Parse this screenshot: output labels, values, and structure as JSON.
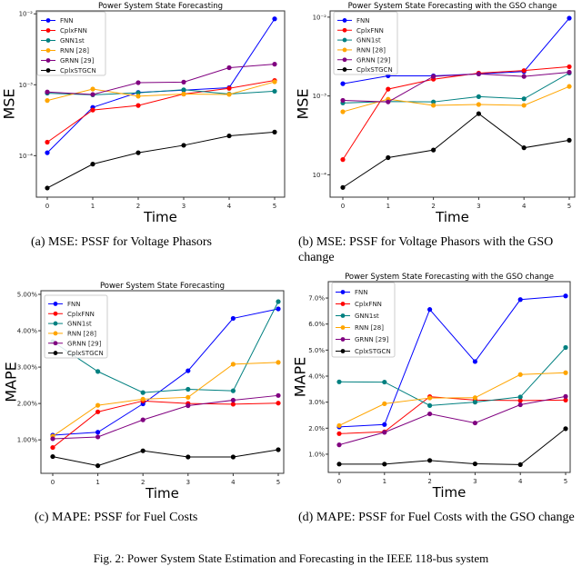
{
  "colors": {
    "FNN": "#0000ff",
    "CplxFNN": "#ff0000",
    "GNN1st": "#008080",
    "RNN [28]": "#ffa500",
    "GRNN [29]": "#800080",
    "CplxSTGCN": "#000000"
  },
  "captions": {
    "a": "(a)  MSE: PSSF for Voltage Phasors",
    "b": "(b)  MSE: PSSF for Voltage Phasors with the GSO change",
    "c": "(c)  MAPE: PSSF for Fuel Costs",
    "d": "(d)  MAPE: PSSF for Fuel Costs with the GSO change",
    "figure": "Fig. 2: Power System State Estimation and Forecasting in the IEEE 118-bus system"
  },
  "chart_data": [
    {
      "type": "line",
      "title": "Power System State Forecasting",
      "xlabel": "Time",
      "ylabel": "MSE",
      "yscale": "log",
      "ylim": [
        2.6e-05,
        0.011
      ],
      "grid": false,
      "legend": "top-left",
      "x": [
        0,
        1,
        2,
        3,
        4,
        5
      ],
      "yticks": [
        0.0001,
        0.001,
        0.01
      ],
      "ytick_labels": [
        "10⁻⁴",
        "10⁻³",
        "10⁻²"
      ],
      "series": [
        {
          "name": "FNN",
          "values": [
            0.00011,
            0.00048,
            0.00078,
            0.00084,
            0.00091,
            0.0085
          ]
        },
        {
          "name": "CplxFNN",
          "values": [
            0.000155,
            0.00044,
            0.00051,
            0.00074,
            0.00089,
            0.00115
          ]
        },
        {
          "name": "GNN1st",
          "values": [
            0.00076,
            0.00072,
            0.00077,
            0.00085,
            0.00074,
            0.00081
          ]
        },
        {
          "name": "RNN [28]",
          "values": [
            0.0006,
            0.00087,
            0.00069,
            0.00074,
            0.00073,
            0.0011
          ]
        },
        {
          "name": "GRNN [29]",
          "values": [
            0.00079,
            0.00073,
            0.00107,
            0.00109,
            0.00174,
            0.00195
          ]
        },
        {
          "name": "CplxSTGCN",
          "values": [
            3.5e-05,
            7.6e-05,
            0.00011,
            0.00014,
            0.00019,
            0.000215
          ]
        }
      ]
    },
    {
      "type": "line",
      "title": "Power System State Forecasting with the GSO change",
      "xlabel": "Time",
      "ylabel": "MSE",
      "yscale": "log",
      "ylim": [
        5.2e-05,
        0.012
      ],
      "grid": false,
      "legend": "top-left",
      "x": [
        0,
        1,
        2,
        3,
        4,
        5
      ],
      "yticks": [
        0.0001,
        0.001,
        0.01
      ],
      "ytick_labels": [
        "10⁻⁴",
        "10⁻³",
        "10⁻²"
      ],
      "series": [
        {
          "name": "FNN",
          "values": [
            0.00143,
            0.0018,
            0.0018,
            0.0019,
            0.00204,
            0.0097
          ]
        },
        {
          "name": "CplxFNN",
          "values": [
            0.000156,
            0.00122,
            0.00163,
            0.00195,
            0.0021,
            0.00235
          ]
        },
        {
          "name": "GNN1st",
          "values": [
            0.000815,
            0.00085,
            0.00084,
            0.00098,
            0.00092,
            0.00195
          ]
        },
        {
          "name": "RNN [28]",
          "values": [
            0.00063,
            0.00091,
            0.00076,
            0.00078,
            0.00076,
            0.00132
          ]
        },
        {
          "name": "GRNN [29]",
          "values": [
            0.00088,
            0.00084,
            0.00177,
            0.0019,
            0.00177,
            0.002
          ]
        },
        {
          "name": "CplxSTGCN",
          "values": [
            6.9e-05,
            0.000165,
            0.000206,
            0.000596,
            0.00022,
            0.000274
          ]
        }
      ]
    },
    {
      "type": "line",
      "title": "Power System State Forecasting",
      "xlabel": "Time",
      "ylabel": "MAPE",
      "yscale": "linear",
      "ylim": [
        0.08,
        5.1
      ],
      "grid": false,
      "legend": "top-left",
      "x": [
        0,
        1,
        2,
        3,
        4,
        5
      ],
      "yticks": [
        1,
        2,
        3,
        4,
        5
      ],
      "ytick_labels": [
        "1.00%",
        "2.00%",
        "3.00%",
        "4.00%",
        "5.00%"
      ],
      "series": [
        {
          "name": "FNN",
          "values": [
            1.13,
            1.21,
            1.99,
            2.9,
            4.34,
            4.6
          ]
        },
        {
          "name": "CplxFNN",
          "values": [
            0.79,
            1.77,
            2.07,
            2.0,
            1.98,
            2.01
          ]
        },
        {
          "name": "GNN1st",
          "values": [
            3.7,
            2.88,
            2.3,
            2.39,
            2.35,
            4.8
          ]
        },
        {
          "name": "RNN [28]",
          "values": [
            1.1,
            1.95,
            2.12,
            2.17,
            3.08,
            3.13
          ]
        },
        {
          "name": "GRNN [29]",
          "values": [
            1.03,
            1.08,
            1.55,
            1.94,
            2.09,
            2.22
          ]
        },
        {
          "name": "CplxSTGCN",
          "values": [
            0.54,
            0.29,
            0.7,
            0.53,
            0.53,
            0.73
          ]
        }
      ]
    },
    {
      "type": "line",
      "title": "Power System State Forecasting with the GSO change",
      "xlabel": "Time",
      "ylabel": "MAPE",
      "yscale": "linear",
      "ylim": [
        0.3,
        7.63
      ],
      "grid": false,
      "legend": "top-left",
      "x": [
        0,
        1,
        2,
        3,
        4,
        5
      ],
      "yticks": [
        1,
        2,
        3,
        4,
        5,
        6,
        7
      ],
      "ytick_labels": [
        "1.0%",
        "2.0%",
        "3.0%",
        "4.0%",
        "5.0%",
        "6.0%",
        "7.0%"
      ],
      "series": [
        {
          "name": "FNN",
          "values": [
            2.05,
            2.14,
            6.56,
            4.56,
            6.94,
            7.08
          ]
        },
        {
          "name": "CplxFNN",
          "values": [
            1.79,
            1.86,
            3.21,
            3.08,
            3.06,
            3.08
          ]
        },
        {
          "name": "GNN1st",
          "values": [
            3.78,
            3.77,
            2.87,
            3.0,
            3.2,
            5.1
          ]
        },
        {
          "name": "RNN [28]",
          "values": [
            2.1,
            2.94,
            3.16,
            3.17,
            4.06,
            4.13
          ]
        },
        {
          "name": "GRNN [29]",
          "values": [
            1.36,
            1.84,
            2.55,
            2.2,
            2.9,
            3.22
          ]
        },
        {
          "name": "CplxSTGCN",
          "values": [
            0.62,
            0.62,
            0.76,
            0.63,
            0.6,
            1.98
          ]
        }
      ]
    }
  ]
}
